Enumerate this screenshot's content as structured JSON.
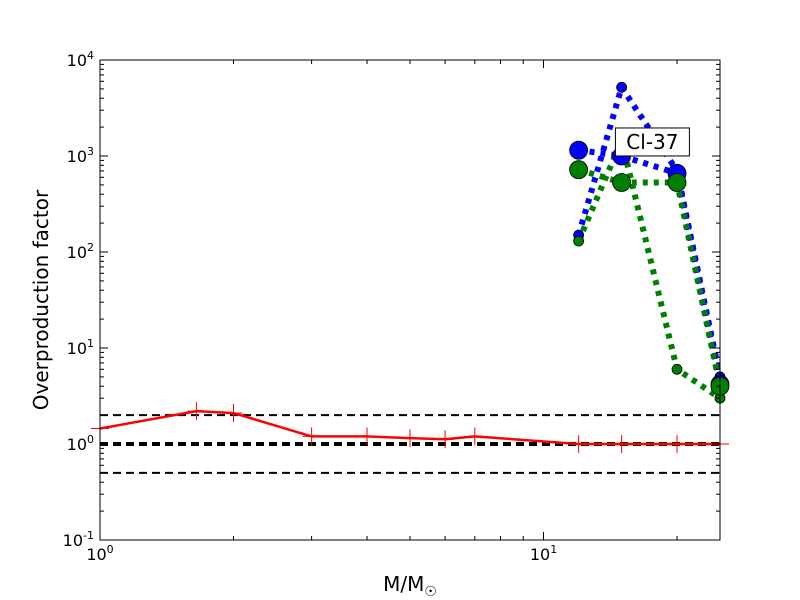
{
  "chart_data": {
    "type": "line",
    "xlabel": "M/M",
    "xlabel_subscript": "☉",
    "ylabel": "Overproduction factor",
    "xscale": "log",
    "yscale": "log",
    "xlim": [
      1,
      25
    ],
    "ylim": [
      0.1,
      10000
    ],
    "x_ticks": [
      {
        "value": 1,
        "base": "10",
        "exp": "0"
      },
      {
        "value": 10,
        "base": "10",
        "exp": "1"
      }
    ],
    "y_ticks": [
      {
        "value": 0.1,
        "base": "10",
        "exp": "-1"
      },
      {
        "value": 1,
        "base": "10",
        "exp": "0"
      },
      {
        "value": 10,
        "base": "10",
        "exp": "1"
      },
      {
        "value": 100,
        "base": "10",
        "exp": "2"
      },
      {
        "value": 1000,
        "base": "10",
        "exp": "3"
      },
      {
        "value": 10000,
        "base": "10",
        "exp": "4"
      }
    ],
    "annotation": {
      "text": "Cl-37",
      "x": 17.6,
      "y": 1400
    },
    "colors": {
      "red": "#ff0000",
      "blue": "#0000ff",
      "green": "#008000",
      "black": "#000000"
    },
    "reference_lines": [
      {
        "y": 2.0,
        "style": "dashed",
        "width": "thin",
        "color": "#000000"
      },
      {
        "y": 1.0,
        "style": "dashed",
        "width": "thick",
        "color": "#000000"
      },
      {
        "y": 0.5,
        "style": "dashed",
        "width": "thin",
        "color": "#000000"
      }
    ],
    "series": [
      {
        "color": "#ff0000",
        "style": "solid",
        "marker": "plus",
        "x": [
          1.0,
          1.65,
          2.0,
          3.0,
          4.0,
          5.0,
          6.0,
          7.0,
          12.0,
          15.0,
          20.0,
          25.0
        ],
        "y": [
          1.45,
          2.2,
          2.1,
          1.2,
          1.2,
          1.15,
          1.12,
          1.2,
          1.0,
          1.0,
          1.0,
          1.0
        ]
      },
      {
        "color": "#0000ff",
        "style": "dotted",
        "marker": "circle-small",
        "x": [
          12.0,
          15.0,
          20.0,
          25.0
        ],
        "y": [
          150,
          5200,
          700,
          5
        ]
      },
      {
        "color": "#0000ff",
        "style": "dotted",
        "marker": "circle-large",
        "x": [
          12.0,
          15.0,
          20.0,
          25.0
        ],
        "y": [
          1150,
          1000,
          660,
          4.2
        ]
      },
      {
        "color": "#008000",
        "style": "dotted",
        "marker": "circle-small",
        "x": [
          12.0,
          15.0,
          20.0,
          25.0
        ],
        "y": [
          130,
          1450,
          6,
          3
        ]
      },
      {
        "color": "#008000",
        "style": "dotted",
        "marker": "circle-large",
        "x": [
          12.0,
          15.0,
          20.0,
          25.0
        ],
        "y": [
          720,
          530,
          530,
          4
        ]
      }
    ]
  }
}
